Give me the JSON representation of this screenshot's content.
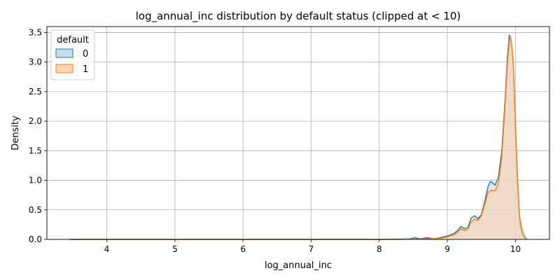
{
  "chart_data": {
    "type": "area",
    "title": "log_annual_inc distribution by default status (clipped at < 10)",
    "xlabel": "log_annual_inc",
    "ylabel": "Density",
    "xlim": [
      3.12,
      10.5
    ],
    "ylim": [
      0,
      3.6
    ],
    "x_ticks": [
      4,
      5,
      6,
      7,
      8,
      9,
      10
    ],
    "y_ticks": [
      0.0,
      0.5,
      1.0,
      1.5,
      2.0,
      2.5,
      3.0,
      3.5
    ],
    "grid": true,
    "legend": {
      "title": "default",
      "placement": "top-left"
    },
    "series": [
      {
        "name": "0",
        "color": "#1f77b4",
        "fill": "#c4dcee",
        "x": [
          3.45,
          4.0,
          5.0,
          6.0,
          7.0,
          8.0,
          8.3,
          8.45,
          8.52,
          8.6,
          8.7,
          8.8,
          8.9,
          9.0,
          9.05,
          9.1,
          9.15,
          9.2,
          9.25,
          9.3,
          9.35,
          9.4,
          9.45,
          9.5,
          9.55,
          9.6,
          9.63,
          9.65,
          9.7,
          9.75,
          9.8,
          9.85,
          9.88,
          9.91,
          9.93,
          9.95,
          9.97,
          10.0,
          10.03,
          10.06,
          10.1,
          10.14,
          10.17
        ],
        "values": [
          0.0,
          0.0,
          0.0,
          0.0,
          0.0,
          0.0,
          0.005,
          0.01,
          0.03,
          0.01,
          0.03,
          0.01,
          0.03,
          0.06,
          0.08,
          0.1,
          0.15,
          0.22,
          0.18,
          0.2,
          0.36,
          0.4,
          0.35,
          0.42,
          0.65,
          0.9,
          0.98,
          0.97,
          0.92,
          1.05,
          1.5,
          2.4,
          3.05,
          3.46,
          3.4,
          3.2,
          2.9,
          1.8,
          0.9,
          0.3,
          0.08,
          0.02,
          0.0
        ]
      },
      {
        "name": "1",
        "color": "#ff7f0e",
        "fill": "#fdd4b1",
        "x": [
          3.45,
          4.0,
          5.0,
          6.0,
          7.0,
          8.0,
          8.3,
          8.5,
          8.6,
          8.7,
          8.8,
          8.9,
          9.0,
          9.05,
          9.1,
          9.15,
          9.2,
          9.25,
          9.3,
          9.35,
          9.4,
          9.45,
          9.5,
          9.55,
          9.6,
          9.65,
          9.7,
          9.75,
          9.8,
          9.85,
          9.88,
          9.91,
          9.93,
          9.95,
          9.97,
          10.0,
          10.03,
          10.06,
          10.1,
          10.14,
          10.17
        ],
        "values": [
          0.0,
          0.0,
          0.0,
          0.0,
          0.0,
          0.0,
          0.0,
          0.005,
          0.008,
          0.01,
          0.01,
          0.02,
          0.04,
          0.06,
          0.08,
          0.12,
          0.18,
          0.15,
          0.17,
          0.3,
          0.34,
          0.32,
          0.4,
          0.6,
          0.8,
          0.83,
          0.82,
          0.95,
          1.4,
          2.3,
          2.95,
          3.35,
          3.42,
          3.25,
          2.95,
          2.0,
          1.1,
          0.4,
          0.15,
          0.04,
          0.0
        ]
      }
    ]
  }
}
